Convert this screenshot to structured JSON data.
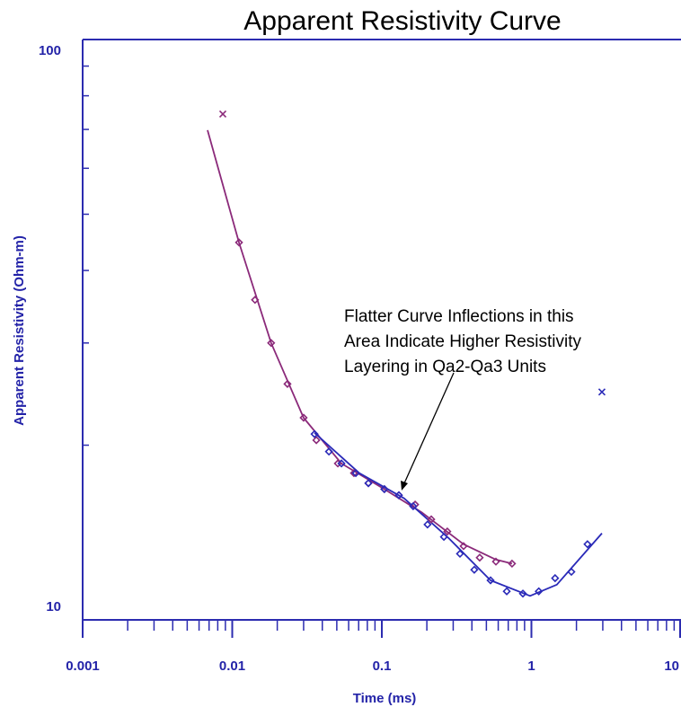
{
  "chart_data": {
    "type": "line",
    "title": "Apparent Resistivity Curve",
    "xlabel": "Time (ms)",
    "ylabel": "Apparent Resistivity (Ohm-m)",
    "annotation": [
      "Flatter Curve Inflections in this",
      "Area Indicate Higher Resistivity",
      "Layering in Qa2-Qa3 Units"
    ],
    "xscale": "log",
    "yscale": "log",
    "minor_ticks": true,
    "xlim": [
      0.001,
      10
    ],
    "ylim": [
      10,
      100
    ],
    "xticks": [
      0.001,
      0.01,
      0.1,
      1,
      10
    ],
    "yticks": [
      10,
      100
    ],
    "axis_color": "#2c2cb0",
    "series": [
      {
        "color": "#8b2a7a",
        "style": "line",
        "x": [
          0.00684,
          0.0111,
          0.0182,
          0.03,
          0.0537,
          0.104,
          0.186,
          0.352,
          0.579,
          0.742
        ],
        "values": [
          69.8,
          44.7,
          30.0,
          22.3,
          18.6,
          16.8,
          15.3,
          13.5,
          12.7,
          12.5
        ]
      },
      {
        "color": "#2a2ab8",
        "style": "line",
        "x": [
          0.0355,
          0.0708,
          0.141,
          0.282,
          0.533,
          0.979,
          1.48,
          2.96
        ],
        "values": [
          21.0,
          17.9,
          16.2,
          13.8,
          11.7,
          11.0,
          11.5,
          14.1
        ]
      },
      {
        "color": "#8b2a7a",
        "style": "diamond",
        "x": [
          0.0111,
          0.0142,
          0.0182,
          0.0234,
          0.03,
          0.0365,
          0.0508,
          0.0651,
          0.0813,
          0.104,
          0.13,
          0.167,
          0.214,
          0.274,
          0.352,
          0.451,
          0.579,
          0.742
        ],
        "values": [
          44.7,
          35.6,
          30.0,
          25.5,
          22.3,
          20.4,
          18.6,
          17.9,
          17.2,
          16.8,
          16.4,
          15.8,
          14.9,
          14.2,
          13.4,
          12.8,
          12.6,
          12.5
        ]
      },
      {
        "color": "#2a2ab8",
        "style": "diamond",
        "x": [
          0.0355,
          0.0443,
          0.0537,
          0.067,
          0.0813,
          0.104,
          0.13,
          0.162,
          0.202,
          0.26,
          0.333,
          0.415,
          0.533,
          0.684,
          0.877,
          1.12,
          1.44,
          1.85,
          2.37
        ],
        "values": [
          20.9,
          19.5,
          18.6,
          17.9,
          17.2,
          16.8,
          16.4,
          15.7,
          14.6,
          13.9,
          13.0,
          12.2,
          11.7,
          11.2,
          11.1,
          11.2,
          11.8,
          12.1,
          13.5
        ]
      },
      {
        "color": "#8b2a7a",
        "style": "cross",
        "x": [
          0.00865
        ],
        "values": [
          74.4
        ]
      },
      {
        "color": "#2a2ab8",
        "style": "cross",
        "x": [
          2.96
        ],
        "values": [
          24.7
        ]
      }
    ]
  }
}
